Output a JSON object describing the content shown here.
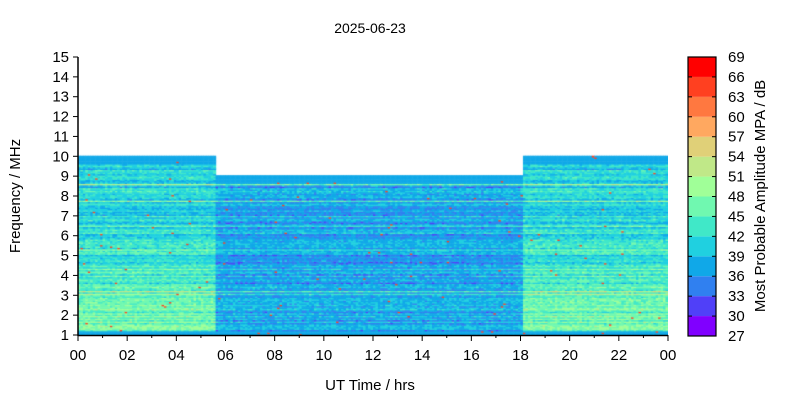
{
  "chart_data": {
    "type": "heatmap",
    "title": "2025-06-23",
    "xlabel": "UT Time / hrs",
    "ylabel": "Frequency / MHz",
    "colorbar_label": "Most Probable Amplitude MPA / dB",
    "xlim": [
      0,
      24
    ],
    "ylim": [
      1,
      15
    ],
    "x_tick_labels": [
      "00",
      "02",
      "04",
      "06",
      "08",
      "10",
      "12",
      "14",
      "16",
      "18",
      "20",
      "22",
      "00"
    ],
    "y_tick_labels": [
      "1",
      "2",
      "3",
      "4",
      "5",
      "6",
      "7",
      "8",
      "9",
      "10",
      "11",
      "12",
      "13",
      "14",
      "15"
    ],
    "colorbar_range": [
      27,
      69
    ],
    "colorbar_tick_labels": [
      "27",
      "30",
      "33",
      "36",
      "39",
      "42",
      "45",
      "48",
      "51",
      "54",
      "57",
      "60",
      "63",
      "66",
      "69"
    ],
    "colorbar_colors": [
      "#8000ff",
      "#5040f8",
      "#3080f0",
      "#10a8e8",
      "#20d0e0",
      "#40e8c8",
      "#70f8b0",
      "#a0ff98",
      "#c0e888",
      "#e0d078",
      "#ffa860",
      "#ff7840",
      "#ff4020",
      "#ff0000"
    ],
    "coverage": [
      {
        "time_start": 0,
        "time_end": 5.5,
        "freq_max": 10
      },
      {
        "time_start": 5.5,
        "time_end": 18,
        "freq_max": 9
      },
      {
        "time_start": 18,
        "time_end": 24,
        "freq_max": 10
      }
    ],
    "typical_amplitude_night_db": [
      42,
      57
    ],
    "typical_amplitude_day_db": [
      36,
      45
    ]
  }
}
